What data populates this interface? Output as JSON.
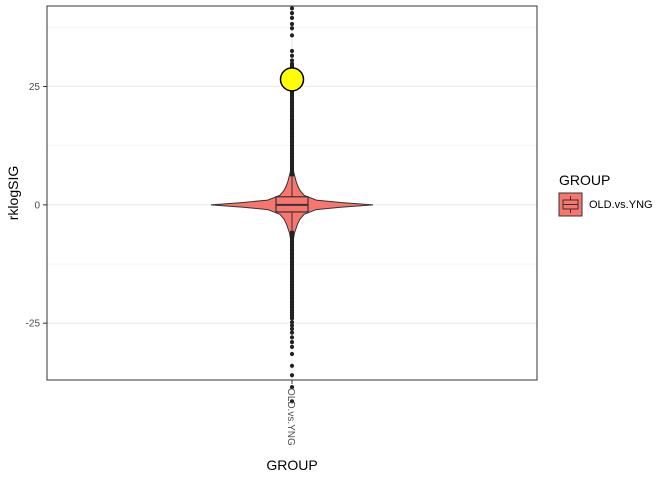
{
  "chart_data": {
    "type": "violin",
    "title": "",
    "xlabel": "GROUP",
    "ylabel": "rklogSIG",
    "ylim": [
      -37,
      42
    ],
    "yticks": [
      -25,
      0,
      25
    ],
    "grid": true,
    "categories": [
      "OLD.vs.YNG"
    ],
    "series": [
      {
        "name": "OLD.vs.YNG",
        "color": "#F8766D",
        "box": {
          "q1": -1.5,
          "median": 0,
          "q3": 1.7,
          "whisker_low": -5.5,
          "whisker_high": 6
        },
        "violin_profile": [
          {
            "y": -10,
            "w": 0.003
          },
          {
            "y": -8,
            "w": 0.01
          },
          {
            "y": -7,
            "w": 0.02
          },
          {
            "y": -6,
            "w": 0.03
          },
          {
            "y": -5,
            "w": 0.05
          },
          {
            "y": -4,
            "w": 0.07
          },
          {
            "y": -3,
            "w": 0.1
          },
          {
            "y": -2,
            "w": 0.15
          },
          {
            "y": -1,
            "w": 0.3
          },
          {
            "y": -0.5,
            "w": 0.6
          },
          {
            "y": 0,
            "w": 1.0
          },
          {
            "y": 0.5,
            "w": 0.6
          },
          {
            "y": 1,
            "w": 0.3
          },
          {
            "y": 2,
            "w": 0.15
          },
          {
            "y": 3,
            "w": 0.1
          },
          {
            "y": 4,
            "w": 0.07
          },
          {
            "y": 5,
            "w": 0.05
          },
          {
            "y": 6,
            "w": 0.035
          },
          {
            "y": 7,
            "w": 0.02
          },
          {
            "y": 8,
            "w": 0.01
          },
          {
            "y": 10,
            "w": 0.004
          }
        ],
        "outliers": [
          41.5,
          40.5,
          39.5,
          38.2,
          37.3,
          35.8,
          32.5,
          31.5,
          30.5,
          29.8,
          29.2,
          28.5,
          27.8,
          27.2,
          26.6,
          26.0,
          25.3,
          24.7,
          24.0,
          23.4,
          22.8,
          22.2,
          21.6,
          21.0,
          20.4,
          19.8,
          19.2,
          18.6,
          18.0,
          17.4,
          16.8,
          16.2,
          15.6,
          15.0,
          14.4,
          13.8,
          13.2,
          12.6,
          12.0,
          11.4,
          10.8,
          10.2,
          9.6,
          9.0,
          8.4,
          7.8,
          7.2,
          6.6,
          -6.6,
          -7.2,
          -7.8,
          -8.4,
          -9.0,
          -9.6,
          -10.2,
          -10.8,
          -11.4,
          -12.0,
          -12.6,
          -13.2,
          -13.8,
          -14.4,
          -15.0,
          -15.6,
          -16.2,
          -16.8,
          -17.4,
          -18.0,
          -18.6,
          -19.2,
          -19.8,
          -20.4,
          -21.0,
          -21.6,
          -22.2,
          -22.8,
          -23.4,
          -24.0,
          -24.8,
          -25.5,
          -26.2,
          -27.0,
          -28.0,
          -29.0,
          -30.0,
          -31.5,
          -34.0,
          -36.0,
          -38.5,
          -41.5
        ],
        "highlight_point": {
          "y": 26.5,
          "color": "#FFFF00"
        }
      }
    ],
    "legend": {
      "title": "GROUP",
      "position": "right",
      "entries": [
        "OLD.vs.YNG"
      ]
    }
  }
}
